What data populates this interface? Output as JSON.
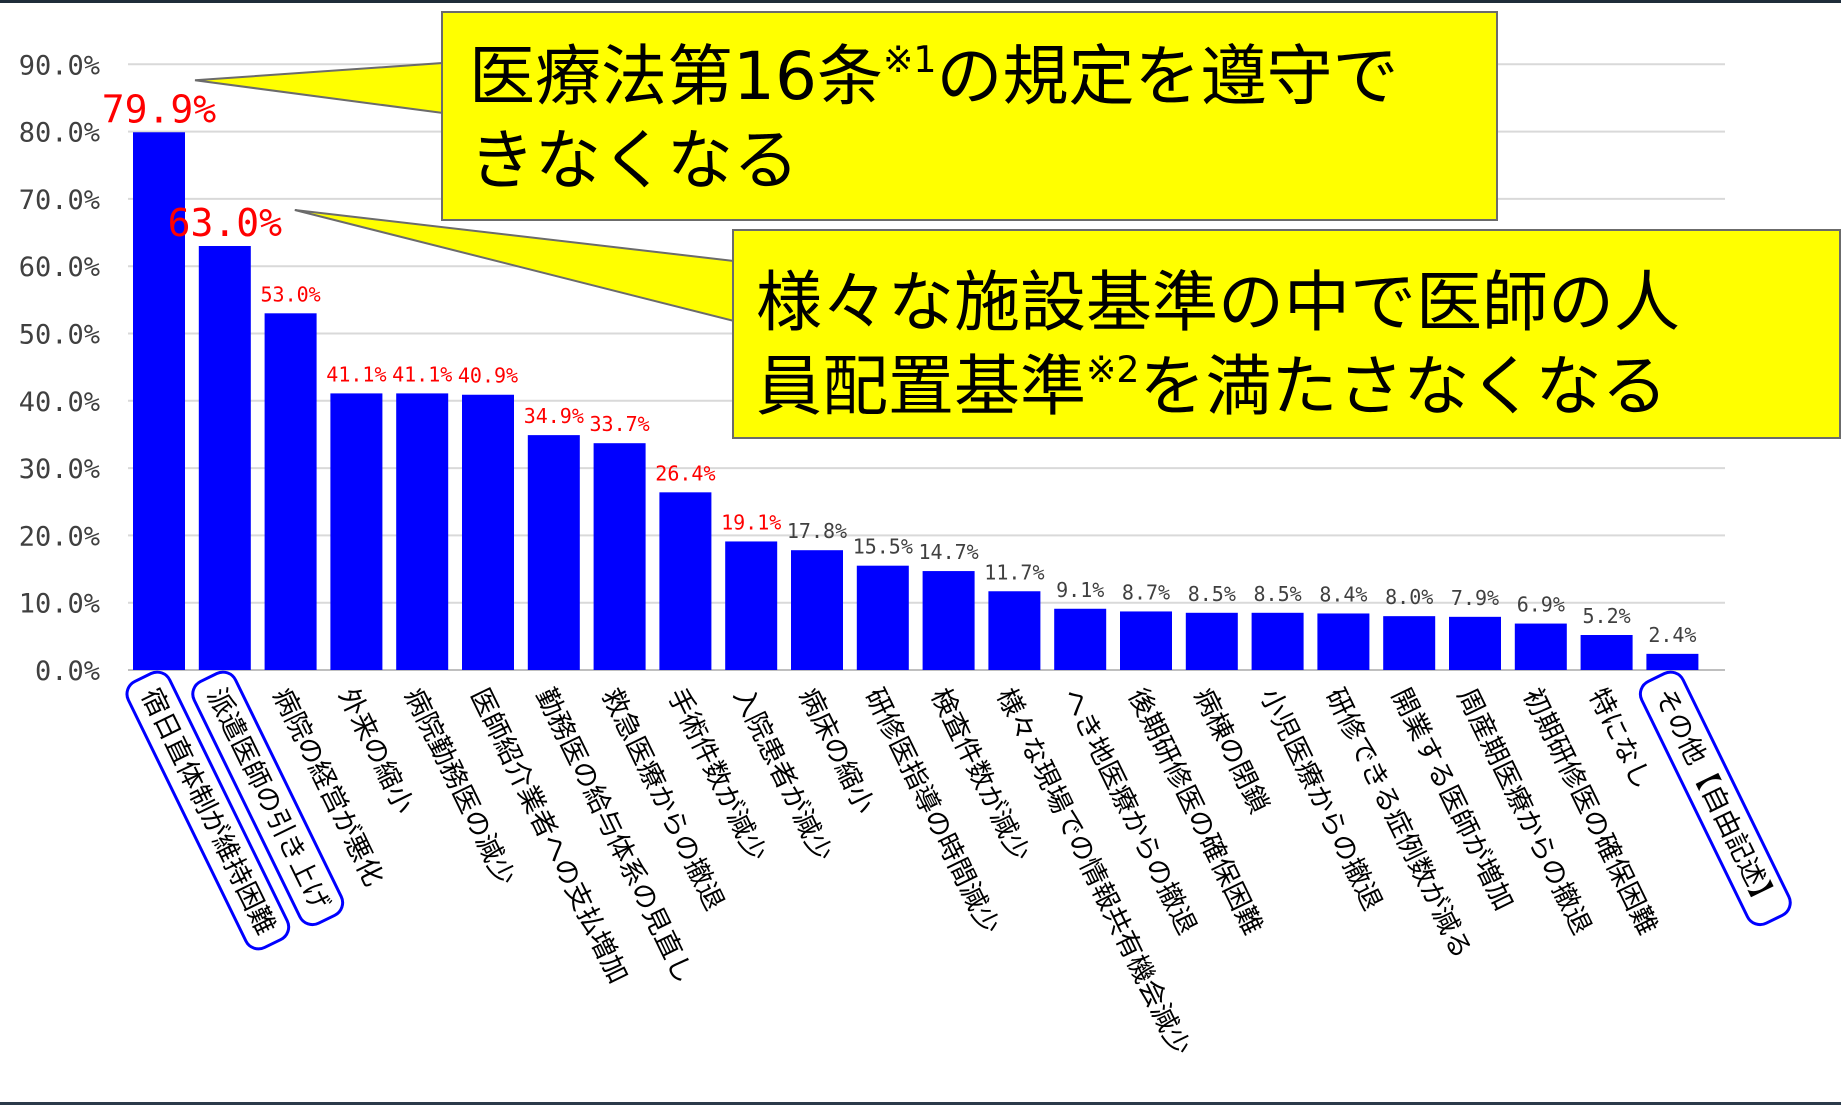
{
  "chart_data": {
    "type": "bar",
    "categories": [
      "宿日直体制が維持困難",
      "派遣医師の引き上げ",
      "病院の経営が悪化",
      "外来の縮小",
      "病院勤務医の減少",
      "医師紹介業者への支払増加",
      "勤務医の給与体系の見直し",
      "救急医療からの撤退",
      "手術件数が減少",
      "入院患者が減少",
      "病床の縮小",
      "研修医指導の時間減少",
      "検査件数が減少",
      "様々な現場での情報共有機会減少",
      "へき地医療からの撤退",
      "後期研修医の確保困難",
      "病棟の閉鎖",
      "小児医療からの撤退",
      "研修できる症例数が減る",
      "開業する医師が増加",
      "周産期医療からの撤退",
      "初期研修医の確保困難",
      "特になし",
      "その他【自由記述】"
    ],
    "values": [
      79.9,
      63.0,
      53.0,
      41.1,
      41.1,
      40.9,
      34.9,
      33.7,
      26.4,
      19.1,
      17.8,
      15.5,
      14.7,
      11.7,
      9.1,
      8.7,
      8.5,
      8.5,
      8.4,
      8.0,
      7.9,
      6.9,
      5.2,
      2.4
    ],
    "value_labels": [
      "79.9%",
      "63.0%",
      "53.0%",
      "41.1%",
      "41.1%",
      "40.9%",
      "34.9%",
      "33.7%",
      "26.4%",
      "19.1%",
      "17.8%",
      "15.5%",
      "14.7%",
      "11.7%",
      "9.1%",
      "8.7%",
      "8.5%",
      "8.5%",
      "8.4%",
      "8.0%",
      "7.9%",
      "6.9%",
      "5.2%",
      "2.4%"
    ],
    "label_highlight": [
      "big",
      "big",
      "red",
      "red",
      "red",
      "red",
      "red",
      "red",
      "red",
      "red",
      "dark",
      "dark",
      "dark",
      "dark",
      "dark",
      "dark",
      "dark",
      "dark",
      "dark",
      "dark",
      "dark",
      "dark",
      "dark",
      "dark"
    ],
    "circled_categories": [
      0,
      1,
      23
    ],
    "y_ticks": [
      "0.0%",
      "10.0%",
      "20.0%",
      "30.0%",
      "40.0%",
      "50.0%",
      "60.0%",
      "70.0%",
      "80.0%",
      "90.0%"
    ],
    "ylim": [
      0,
      90
    ],
    "grid": true,
    "legend": "none",
    "xlabel": "",
    "ylabel": "",
    "title": ""
  },
  "callouts": [
    {
      "line1_pre": "医療法第16条",
      "line1_mark": "※1",
      "line1_post": "の規定を遵守で",
      "line2": "きなくなる",
      "points_to": 0
    },
    {
      "line1": "様々な施設基準の中で医師の人",
      "line2_pre": "員配置基準",
      "line2_mark": "※2",
      "line2_post": "を満たさなくなる",
      "points_to": 1
    }
  ],
  "colors": {
    "bar": "#0000ff",
    "grid": "#d9d9d9",
    "label_red": "#ff0000",
    "label_dark": "#404040",
    "callout_fill": "#ffff00",
    "circle_outline": "#0000ff"
  }
}
